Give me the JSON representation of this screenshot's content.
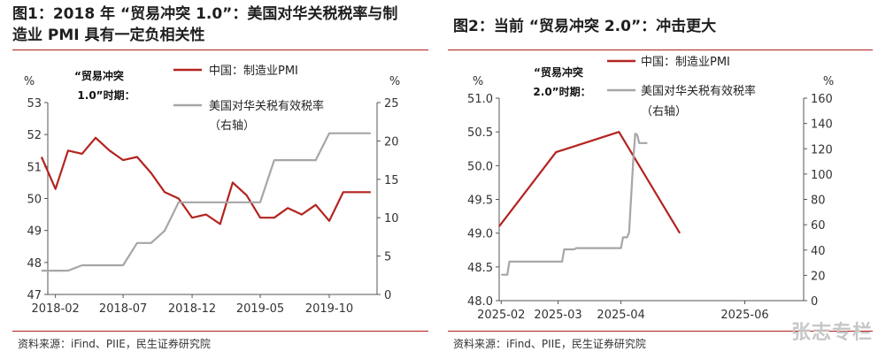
{
  "panels": [
    {
      "title_line1": "图1：2018 年 “贸易冲突 1.0”：美国对华关税税率与制",
      "title_line2": "造业 PMI 具有一定负相关性",
      "source": "资料来源：iFind、PIIE，民生证券研究院",
      "annotation_line1": "“贸易冲突",
      "annotation_line2": "1.0”时期：",
      "left_unit": "%",
      "right_unit": "%",
      "legend": {
        "pmi": "中国：制造业PMI",
        "tariff_line1": "美国对华关税有效税率",
        "tariff_line2": "（右轴）"
      }
    },
    {
      "title_line1": "图2：当前 “贸易冲突 2.0”：冲击更大",
      "source": "资料来源：iFind、PIIE，民生证券研究院",
      "annotation_line1": "“贸易冲突",
      "annotation_line2": "2.0”时期：",
      "left_unit": "%",
      "right_unit": "%",
      "legend": {
        "pmi": "中国：制造业PMI",
        "tariff_line1": "美国对华关税有效税率",
        "tariff_line2": "（右轴）"
      }
    }
  ],
  "watermark": "张志专栏",
  "colors": {
    "pmi": "#b3231f",
    "tariff": "#a6a6a6",
    "rule": "#b31c1c"
  },
  "chart_data": [
    {
      "type": "line",
      "x_ticks": [
        "2018-02",
        "2018-07",
        "2018-12",
        "2019-05",
        "2019-10"
      ],
      "ylim_left": [
        47,
        53
      ],
      "y_ticks_left": [
        "47",
        "48",
        "49",
        "50",
        "51",
        "52",
        "53"
      ],
      "ylim_right": [
        0,
        25
      ],
      "y_ticks_right": [
        "0",
        "5",
        "10",
        "15",
        "20",
        "25"
      ],
      "series": [
        {
          "name": "中国：制造业PMI",
          "axis": "left",
          "x": [
            "2018-01",
            "2018-02",
            "2018-03",
            "2018-04",
            "2018-05",
            "2018-06",
            "2018-07",
            "2018-08",
            "2018-09",
            "2018-10",
            "2018-11",
            "2018-12",
            "2019-01",
            "2019-02",
            "2019-03",
            "2019-04",
            "2019-05",
            "2019-06",
            "2019-07",
            "2019-08",
            "2019-09",
            "2019-10",
            "2019-11",
            "2019-12",
            "2020-01"
          ],
          "values": [
            51.3,
            50.3,
            51.5,
            51.4,
            51.9,
            51.5,
            51.2,
            51.3,
            50.8,
            50.2,
            50.0,
            49.4,
            49.5,
            49.2,
            50.5,
            50.1,
            49.4,
            49.4,
            49.7,
            49.5,
            49.8,
            49.3,
            50.2,
            50.2,
            50.2
          ]
        },
        {
          "name": "美国对华关税有效税率（右轴）",
          "axis": "right",
          "x": [
            "2018-01",
            "2018-02",
            "2018-03",
            "2018-04",
            "2018-05",
            "2018-06",
            "2018-07",
            "2018-08",
            "2018-09",
            "2018-10",
            "2018-11",
            "2018-12",
            "2019-01",
            "2019-02",
            "2019-03",
            "2019-04",
            "2019-05",
            "2019-06",
            "2019-07",
            "2019-08",
            "2019-09",
            "2019-10",
            "2019-11",
            "2019-12",
            "2020-01"
          ],
          "values": [
            3.1,
            3.1,
            3.1,
            3.8,
            3.8,
            3.8,
            3.8,
            6.7,
            6.7,
            8.3,
            12.0,
            12.0,
            12.0,
            12.0,
            12.0,
            12.0,
            12.0,
            17.5,
            17.5,
            17.5,
            17.5,
            21.0,
            21.0,
            21.0,
            21.0
          ]
        }
      ]
    },
    {
      "type": "line",
      "x_ticks": [
        "2025-02",
        "2025-03",
        "2025-04",
        "2025-06"
      ],
      "ylim_left": [
        48.0,
        51.0
      ],
      "y_ticks_left": [
        "48.0",
        "48.5",
        "49.0",
        "49.5",
        "50.0",
        "50.5",
        "51.0"
      ],
      "ylim_right": [
        0,
        160
      ],
      "y_ticks_right": [
        "0",
        "20",
        "40",
        "60",
        "80",
        "100",
        "120",
        "140",
        "160"
      ],
      "series": [
        {
          "name": "中国：制造业PMI",
          "axis": "left",
          "x": [
            "2025-01-31",
            "2025-02-28",
            "2025-03-31",
            "2025-04-30"
          ],
          "values": [
            49.1,
            50.2,
            50.5,
            49.0
          ]
        },
        {
          "name": "美国对华关税有效税率（右轴）",
          "axis": "right",
          "x": [
            "2025-02-01",
            "2025-02-04",
            "2025-02-05",
            "2025-03-03",
            "2025-03-04",
            "2025-03-09",
            "2025-03-10",
            "2025-04-01",
            "2025-04-02",
            "2025-04-04",
            "2025-04-05",
            "2025-04-07",
            "2025-04-08",
            "2025-04-09",
            "2025-04-10",
            "2025-04-14"
          ],
          "values": [
            20.5,
            20.5,
            30.8,
            30.8,
            40.5,
            40.5,
            41.5,
            41.5,
            50.0,
            50.0,
            54.0,
            110.0,
            132.0,
            131.0,
            124.5,
            124.5
          ]
        }
      ]
    }
  ]
}
